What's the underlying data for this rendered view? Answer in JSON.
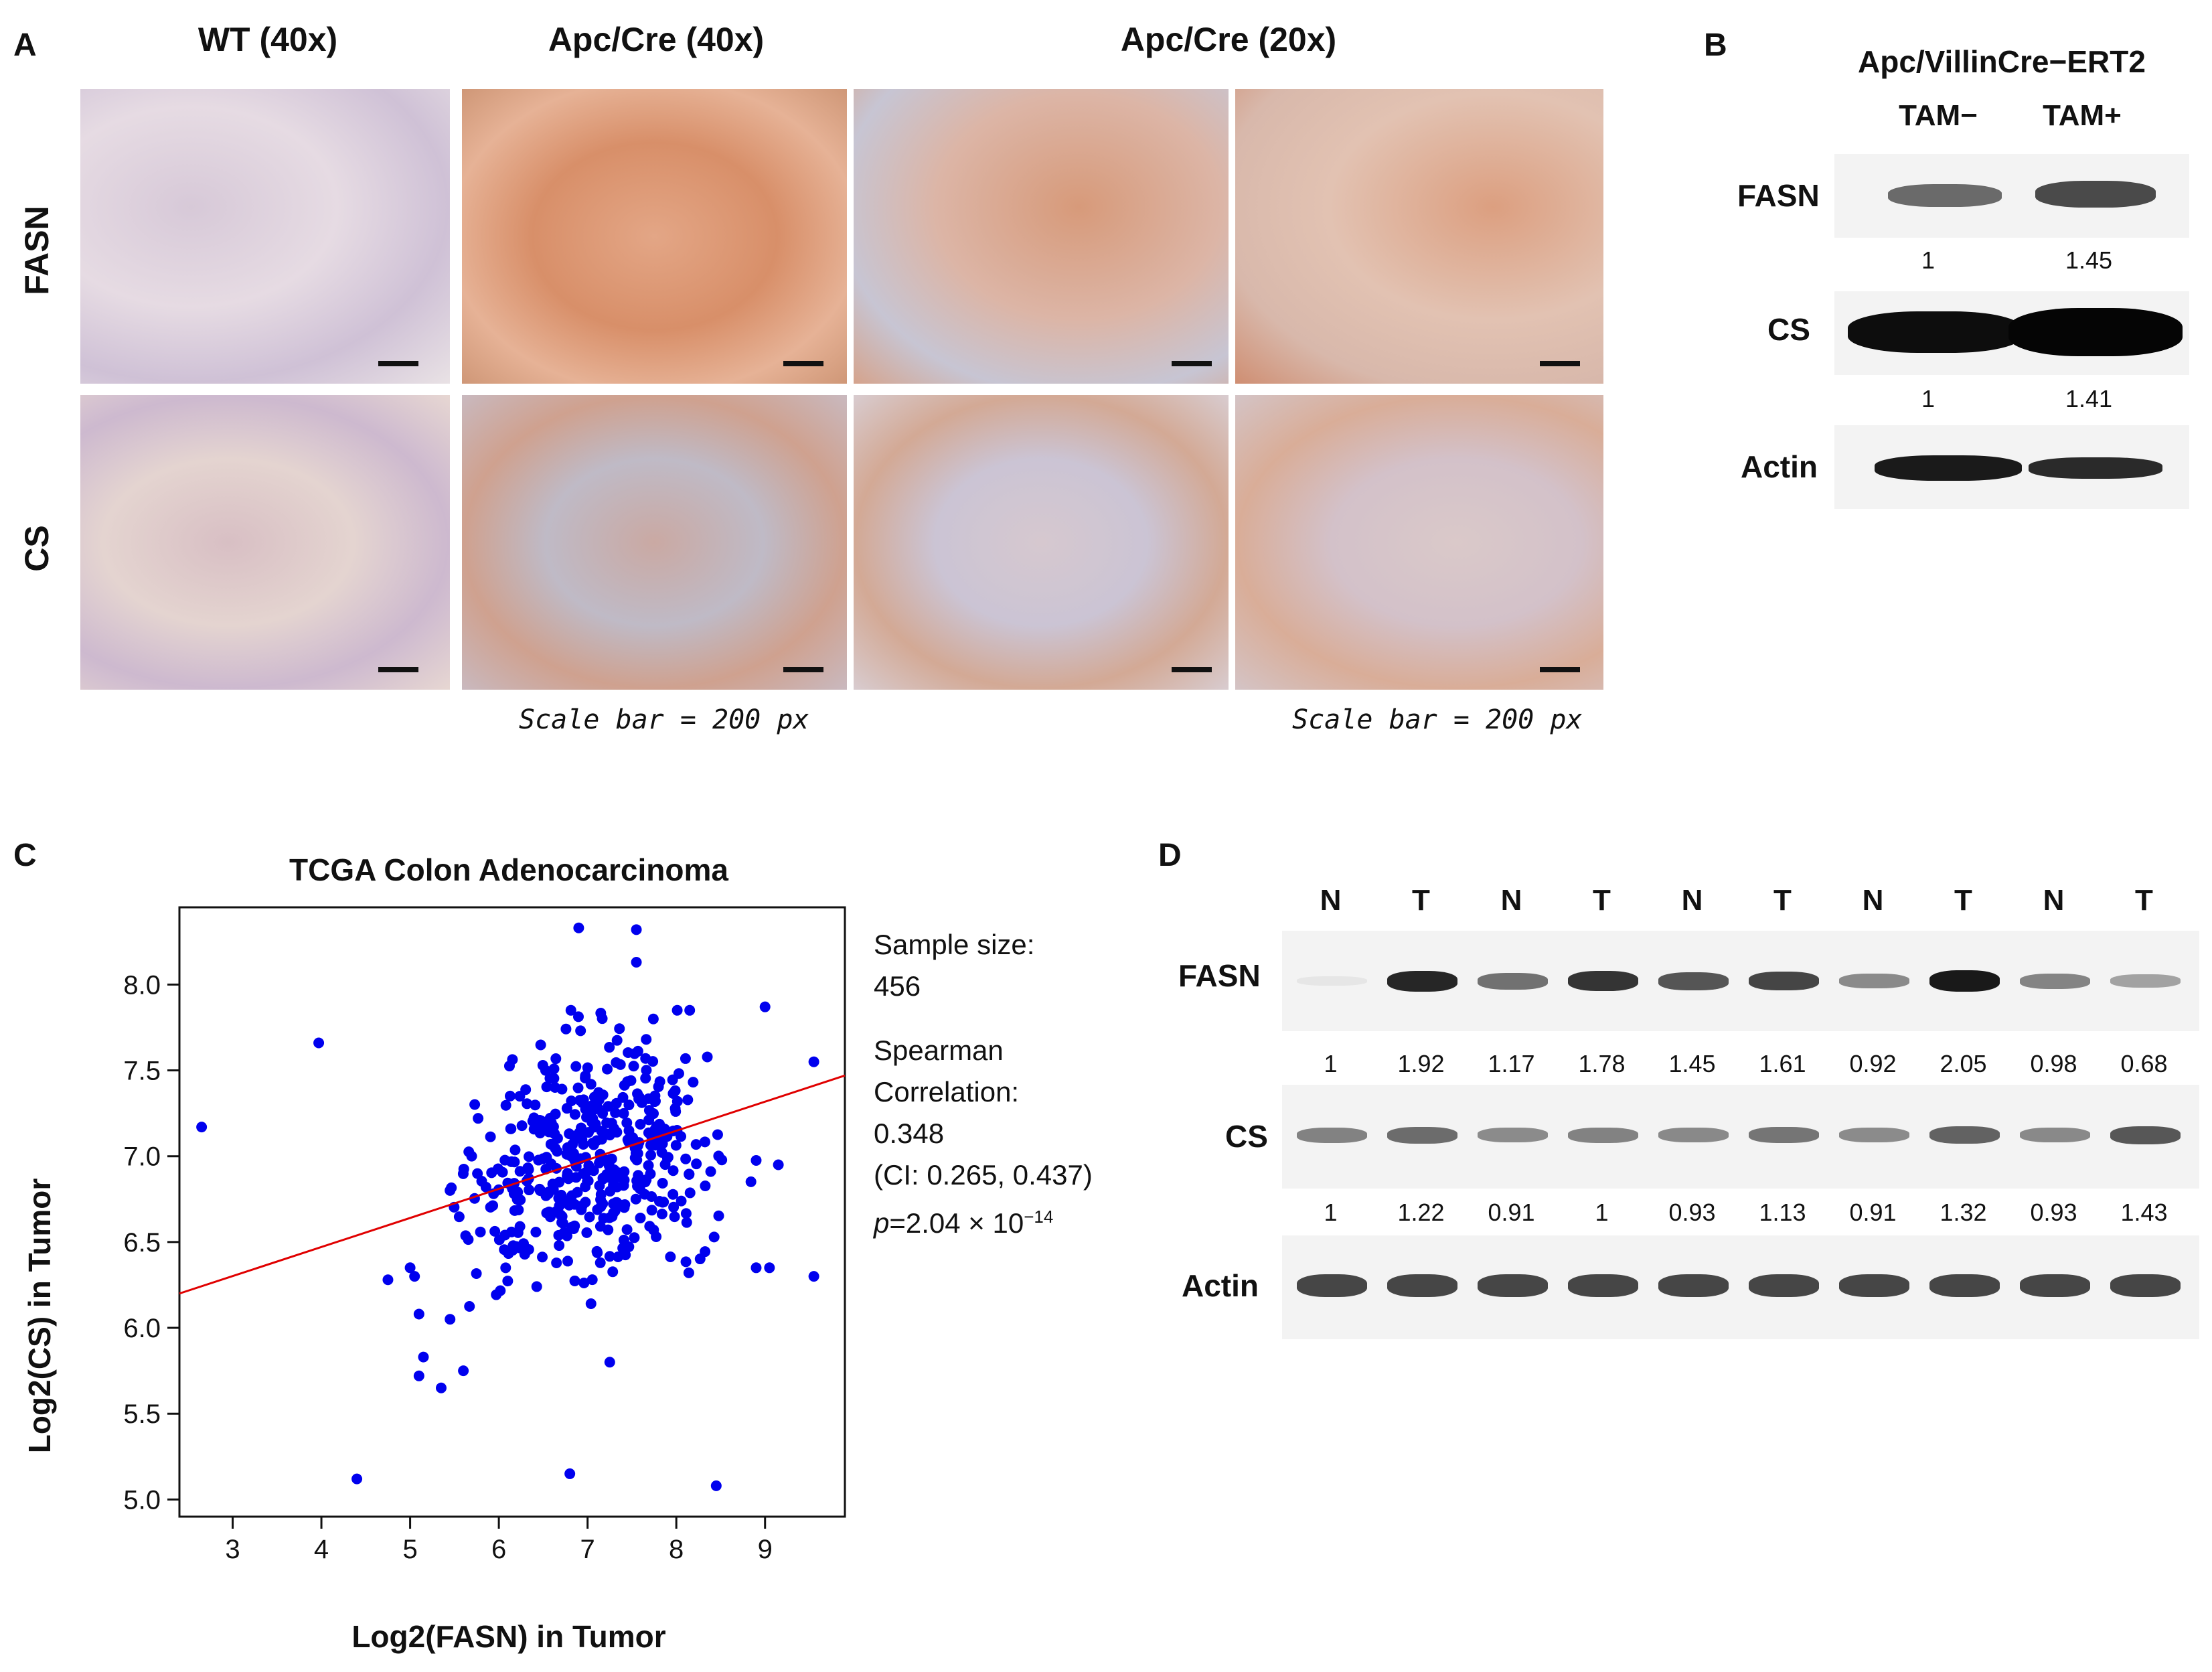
{
  "panel_a": {
    "letter": "A",
    "columns": [
      "WT (40x)",
      "Apc/Cre (40x)",
      "Apc/Cre (20x)"
    ],
    "rows": [
      "FASN",
      "CS"
    ],
    "scale_caption_1": "Scale bar = 200 px",
    "scale_caption_2": "Scale bar = 200 px"
  },
  "panel_b": {
    "letter": "B",
    "header": "Apc/VillinCre−ERT2",
    "lanes": [
      "TAM−",
      "TAM+"
    ],
    "blots": [
      {
        "label": "FASN",
        "quant": [
          "1",
          "1.45"
        ]
      },
      {
        "label": "CS",
        "quant": [
          "1",
          "1.41"
        ]
      },
      {
        "label": "Actin"
      }
    ]
  },
  "panel_c": {
    "letter": "C",
    "stats": {
      "sample_label": "Sample size:",
      "sample_value": "456",
      "spearman_label_1": "Spearman",
      "spearman_label_2": "Correlation:",
      "rho": "0.348",
      "ci": "(CI: 0.265, 0.437)",
      "p_prefix": "p",
      "p_text": "=2.04 × 10",
      "p_exp": "−14"
    }
  },
  "panel_d": {
    "letter": "D",
    "lanes": [
      "N",
      "T",
      "N",
      "T",
      "N",
      "T",
      "N",
      "T",
      "N",
      "T"
    ],
    "blots": [
      {
        "label": "FASN",
        "quant": [
          "1",
          "1.92",
          "1.17",
          "1.78",
          "1.45",
          "1.61",
          "0.92",
          "2.05",
          "0.98",
          "0.68"
        ]
      },
      {
        "label": "CS",
        "quant": [
          "1",
          "1.22",
          "0.91",
          "1",
          "0.93",
          "1.13",
          "0.91",
          "1.32",
          "0.93",
          "1.43"
        ]
      },
      {
        "label": "Actin"
      }
    ]
  },
  "chart_data": {
    "type": "scatter",
    "title": "TCGA Colon Adenocarcinoma",
    "xlabel": "Log2(FASN) in Tumor",
    "ylabel": "Log2(CS) in Tumor",
    "xlim": [
      2.4,
      9.9
    ],
    "ylim": [
      4.9,
      8.45
    ],
    "xticks": [
      3,
      4,
      5,
      6,
      7,
      8,
      9
    ],
    "yticks": [
      5.0,
      5.5,
      6.0,
      6.5,
      7.0,
      7.5,
      8.0
    ],
    "point_color": "#0000ee",
    "line_color": "#e00000",
    "regression": {
      "x": [
        2.4,
        9.9
      ],
      "y": [
        6.2,
        7.47
      ]
    },
    "outliers": [
      [
        2.65,
        7.17
      ],
      [
        3.97,
        7.66
      ],
      [
        4.4,
        5.12
      ],
      [
        6.8,
        5.15
      ],
      [
        8.45,
        5.08
      ],
      [
        9.55,
        7.55
      ],
      [
        9.55,
        6.3
      ],
      [
        8.9,
        6.35
      ],
      [
        9.05,
        6.35
      ],
      [
        9.15,
        6.95
      ],
      [
        9.0,
        7.87
      ],
      [
        6.9,
        8.33
      ],
      [
        7.55,
        8.32
      ],
      [
        7.55,
        8.13
      ],
      [
        5.6,
        5.75
      ],
      [
        5.35,
        5.65
      ],
      [
        5.1,
        6.08
      ],
      [
        5.15,
        5.83
      ],
      [
        5.1,
        5.72
      ],
      [
        4.75,
        6.28
      ],
      [
        7.25,
        5.8
      ],
      [
        5.05,
        6.3
      ],
      [
        5.0,
        6.35
      ],
      [
        5.45,
        6.05
      ],
      [
        7.65,
        6.85
      ]
    ]
  }
}
